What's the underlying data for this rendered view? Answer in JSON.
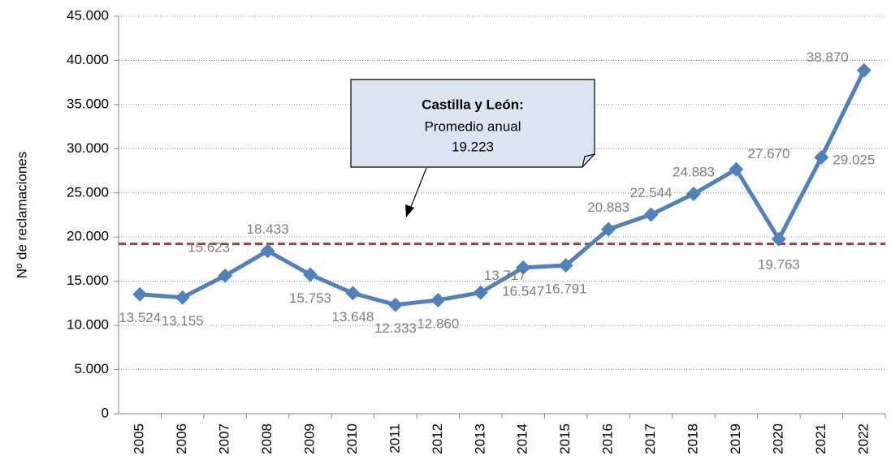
{
  "chart_data": {
    "type": "line",
    "y_label": "Nº de reclamaciones",
    "categories": [
      "2005",
      "2006",
      "2007",
      "2008",
      "2009",
      "2010",
      "2011",
      "2012",
      "2013",
      "2014",
      "2015",
      "2016",
      "2017",
      "2018",
      "2019",
      "2020",
      "2021",
      "2022"
    ],
    "series": [
      {
        "color": "#4f81bd",
        "values": [
          13524,
          13155,
          15623,
          18433,
          15753,
          13648,
          12333,
          12860,
          13717,
          16547,
          16791,
          20883,
          22544,
          24883,
          27670,
          19763,
          29025,
          38870
        ],
        "value_labels": [
          "13.524",
          "13.155",
          "15.623",
          "18.433",
          "15.753",
          "13.648",
          "12.333",
          "12.860",
          "13.717",
          "16.547",
          "16.791",
          "20.883",
          "22.544",
          "24.883",
          "27.670",
          "19.763",
          "29.025",
          "38.870"
        ]
      }
    ],
    "ylim": [
      0,
      45000
    ],
    "yticks": [
      0,
      {
        "value": 5000,
        "label": "5.000"
      },
      {
        "value": 10000,
        "label": "10.000"
      },
      {
        "value": 15000,
        "label": "15.000"
      },
      {
        "value": 20000,
        "label": "20.000"
      },
      {
        "value": 25000,
        "label": "25.000"
      },
      {
        "value": 30000,
        "label": "30.000"
      },
      {
        "value": 35000,
        "label": "35.000"
      },
      {
        "value": 40000,
        "label": "40.000"
      },
      {
        "value": 45000,
        "label": "45.000"
      }
    ],
    "grid": true,
    "reference_line": {
      "value": 19223,
      "label": "19.223",
      "color": "#a93a35"
    },
    "annotation": {
      "title": "Castilla y León:",
      "text": "Promedio anual"
    }
  }
}
